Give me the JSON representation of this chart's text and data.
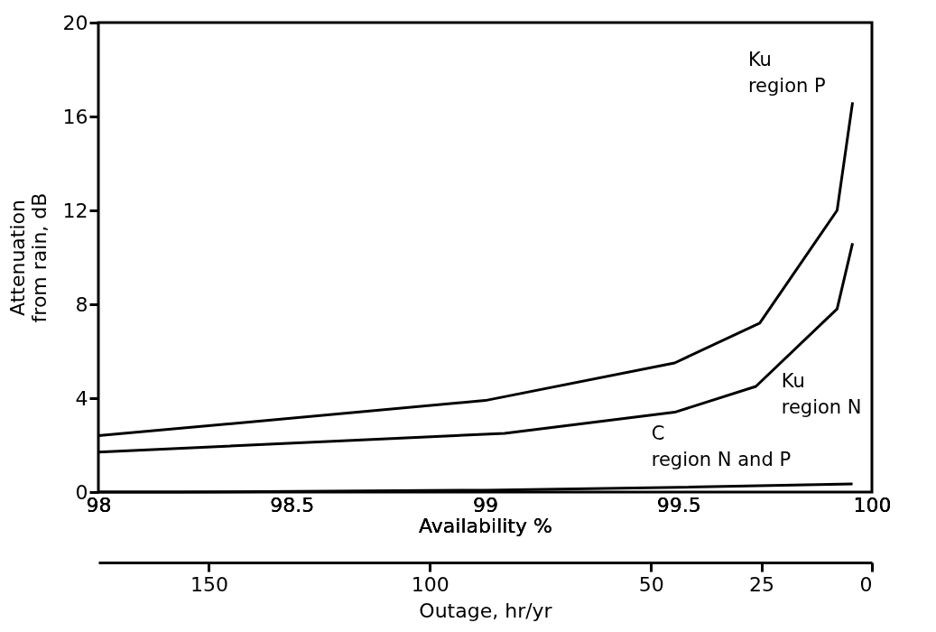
{
  "chart_data": {
    "type": "line",
    "xlabel": "Availability %",
    "ylabel": "Attenuation\nfrom rain, dB",
    "x2label": "Outage, hr/yr",
    "xlim": [
      98,
      100
    ],
    "xticks": [
      98,
      98.5,
      99,
      99.5,
      100
    ],
    "ylim": [
      0,
      20
    ],
    "yticks": [
      0,
      4,
      8,
      12,
      16,
      20
    ],
    "x2lim": [
      175,
      0
    ],
    "x2ticks": [
      150,
      100,
      50,
      25,
      0
    ],
    "grid": false,
    "marker": "none",
    "line_style": "solid",
    "series": [
      {
        "color": "#000000",
        "x": [
          98,
          99,
          99.49,
          99.71,
          99.91,
          99.95
        ],
        "values": [
          2.4,
          3.9,
          5.5,
          7.2,
          12.0,
          16.6
        ]
      },
      {
        "color": "#000000",
        "x": [
          98,
          99.05,
          99.49,
          99.7,
          99.91,
          99.95
        ],
        "values": [
          1.7,
          2.5,
          3.4,
          4.5,
          7.8,
          10.6
        ]
      },
      {
        "color": "#000000",
        "x": [
          98,
          98.2,
          99,
          99.5,
          99.95
        ],
        "values": [
          0.0,
          0.0,
          0.08,
          0.2,
          0.35
        ]
      }
    ],
    "annotations": [
      "Ku\nregion P",
      "Ku\nregion N",
      "C\nregion N and P"
    ]
  }
}
